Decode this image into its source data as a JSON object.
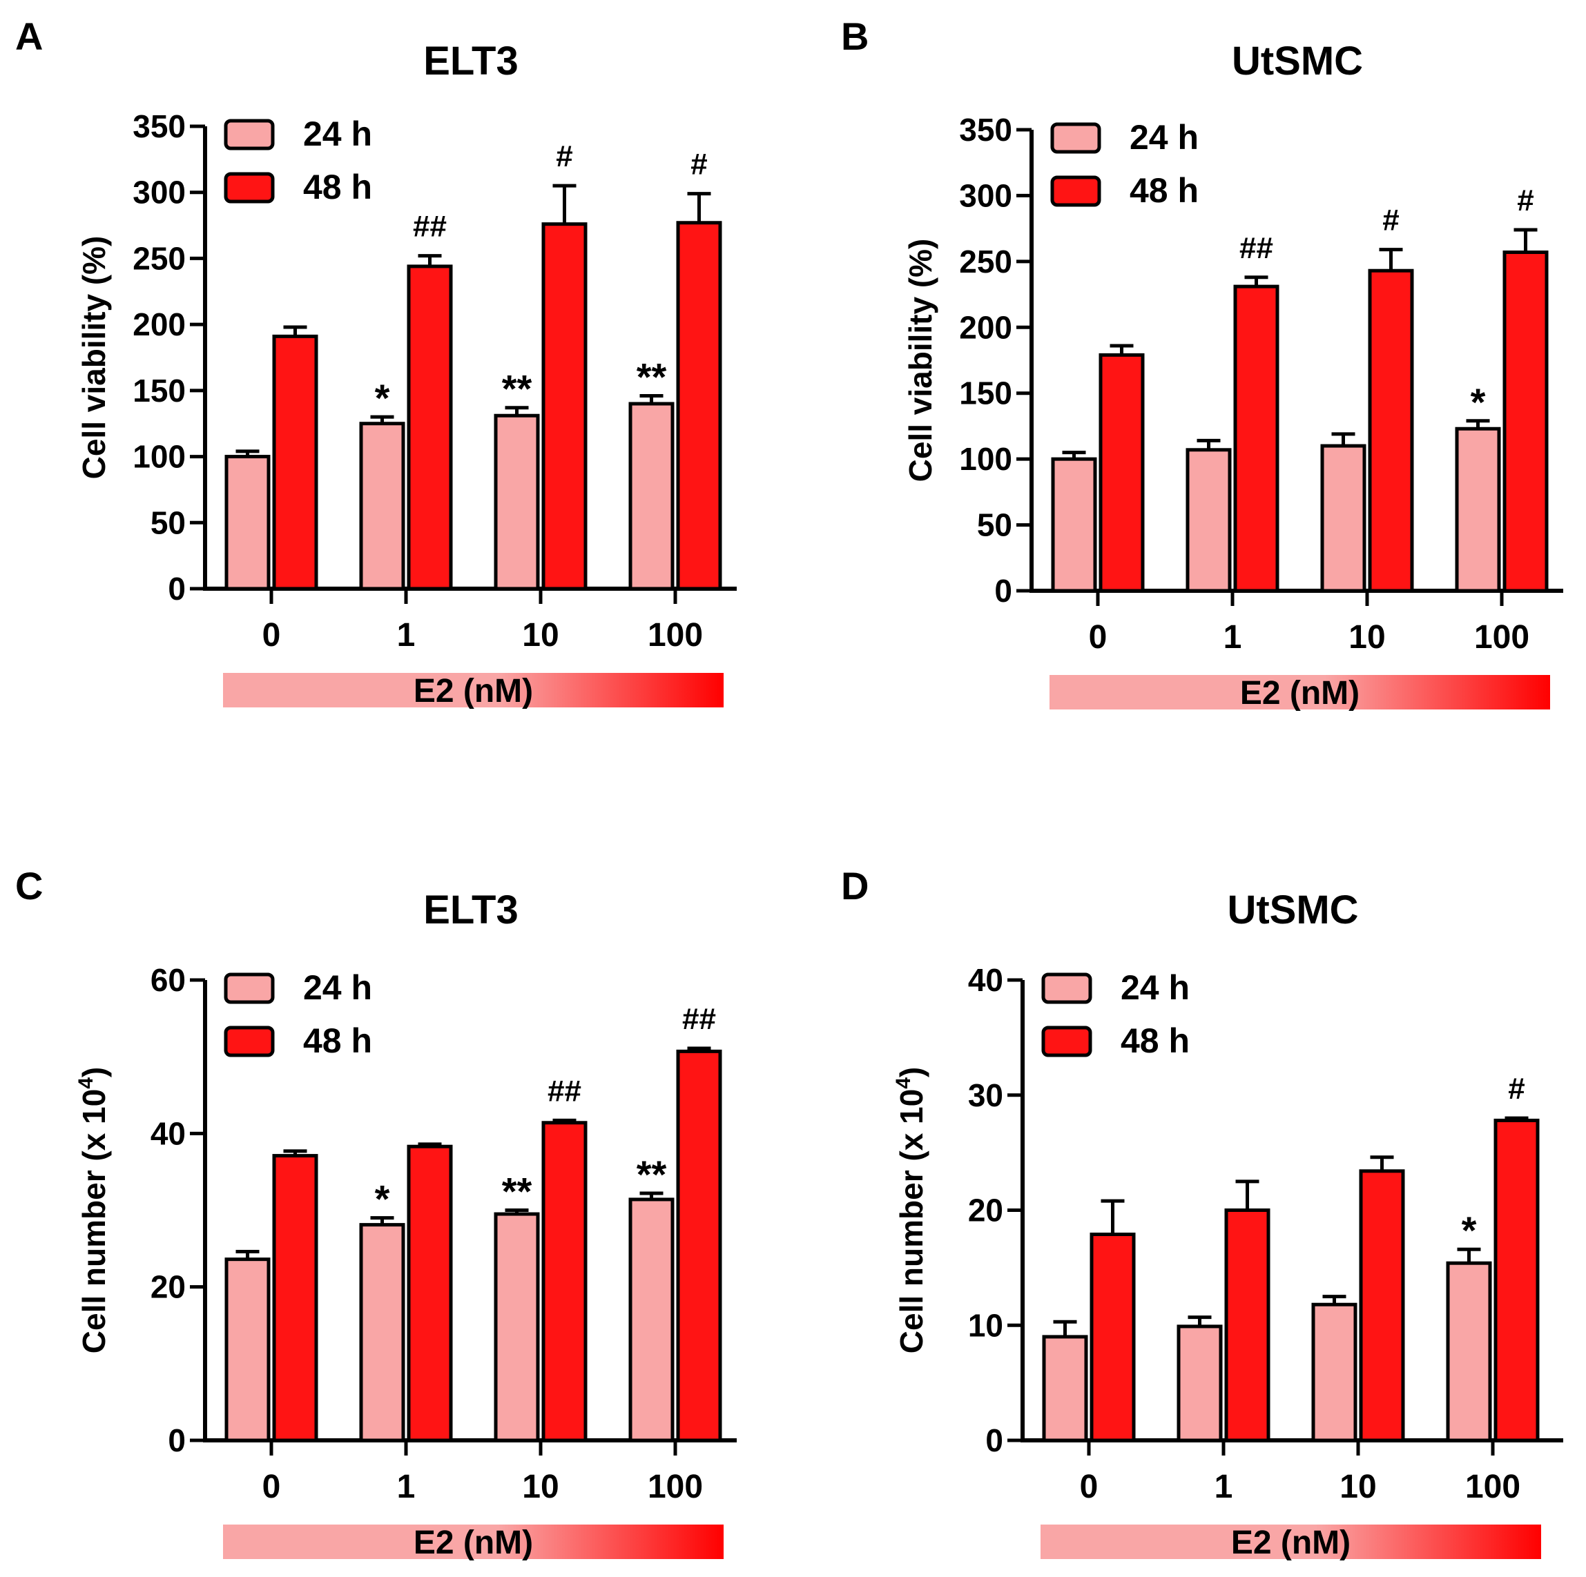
{
  "colors": {
    "light": "#f9a6a6",
    "dark": "#ff1414",
    "axis": "#000000",
    "gradient_start": "#f9a6a6",
    "gradient_end": "#ff0000"
  },
  "chart_data": [
    {
      "panel": "A",
      "type": "bar",
      "title": "ELT3",
      "ylabel": "Cell viability (%)",
      "xlabel": "E2 (nM)",
      "categories": [
        "0",
        "1",
        "10",
        "100"
      ],
      "ylim": [
        0,
        350
      ],
      "yticks": [
        "0",
        "50",
        "100",
        "150",
        "200",
        "250",
        "300",
        "350"
      ],
      "series": [
        {
          "name": "24 h",
          "values": [
            100,
            125,
            131,
            140
          ],
          "errors": [
            4,
            5,
            6,
            6
          ]
        },
        {
          "name": "48 h",
          "values": [
            191,
            244,
            276,
            277
          ],
          "errors": [
            7,
            8,
            29,
            22
          ]
        }
      ],
      "annotations": [
        {
          "category": 1,
          "series": 0,
          "text": "*"
        },
        {
          "category": 2,
          "series": 0,
          "text": "**"
        },
        {
          "category": 3,
          "series": 0,
          "text": "**"
        },
        {
          "category": 1,
          "series": 1,
          "text": "##"
        },
        {
          "category": 2,
          "series": 1,
          "text": "#"
        },
        {
          "category": 3,
          "series": 1,
          "text": "#"
        }
      ]
    },
    {
      "panel": "B",
      "type": "bar",
      "title": "UtSMC",
      "ylabel": "Cell viability (%)",
      "xlabel": "E2 (nM)",
      "categories": [
        "0",
        "1",
        "10",
        "100"
      ],
      "ylim": [
        0,
        350
      ],
      "yticks": [
        "0",
        "50",
        "100",
        "150",
        "200",
        "250",
        "300",
        "350"
      ],
      "series": [
        {
          "name": "24 h",
          "values": [
            100,
            107,
            110,
            123
          ],
          "errors": [
            5,
            7,
            9,
            6
          ]
        },
        {
          "name": "48 h",
          "values": [
            179,
            231,
            243,
            257
          ],
          "errors": [
            7,
            7,
            16,
            17
          ]
        }
      ],
      "annotations": [
        {
          "category": 3,
          "series": 0,
          "text": "*"
        },
        {
          "category": 1,
          "series": 1,
          "text": "##"
        },
        {
          "category": 2,
          "series": 1,
          "text": "#"
        },
        {
          "category": 3,
          "series": 1,
          "text": "#"
        }
      ]
    },
    {
      "panel": "C",
      "type": "bar",
      "title": "ELT3",
      "ylabel": "Cell number (x 10",
      "ylabel_superscript": "4",
      "ylabel_suffix": ")",
      "xlabel": "E2 (nM)",
      "categories": [
        "0",
        "1",
        "10",
        "100"
      ],
      "ylim": [
        0,
        60
      ],
      "yticks": [
        "0",
        "20",
        "40",
        "60"
      ],
      "series": [
        {
          "name": "24 h",
          "values": [
            23.6,
            28.1,
            29.5,
            31.4
          ],
          "errors": [
            1.0,
            0.9,
            0.5,
            0.8
          ]
        },
        {
          "name": "48 h",
          "values": [
            37.1,
            38.3,
            41.4,
            50.7
          ],
          "errors": [
            0.6,
            0.3,
            0.3,
            0.4
          ]
        }
      ],
      "annotations": [
        {
          "category": 1,
          "series": 0,
          "text": "*"
        },
        {
          "category": 2,
          "series": 0,
          "text": "**"
        },
        {
          "category": 3,
          "series": 0,
          "text": "**"
        },
        {
          "category": 2,
          "series": 1,
          "text": "##"
        },
        {
          "category": 3,
          "series": 1,
          "text": "##"
        }
      ]
    },
    {
      "panel": "D",
      "type": "bar",
      "title": "UtSMC",
      "ylabel": "Cell number (x 10",
      "ylabel_superscript": "4",
      "ylabel_suffix": ")",
      "xlabel": "E2 (nM)",
      "categories": [
        "0",
        "1",
        "10",
        "100"
      ],
      "ylim": [
        0,
        40
      ],
      "yticks": [
        "0",
        "10",
        "20",
        "30",
        "40"
      ],
      "series": [
        {
          "name": "24 h",
          "values": [
            9.0,
            9.9,
            11.8,
            15.4
          ],
          "errors": [
            1.3,
            0.8,
            0.7,
            1.2
          ]
        },
        {
          "name": "48 h",
          "values": [
            17.9,
            20.0,
            23.4,
            27.8
          ],
          "errors": [
            2.9,
            2.5,
            1.2,
            0.2
          ]
        }
      ],
      "annotations": [
        {
          "category": 3,
          "series": 0,
          "text": "*"
        },
        {
          "category": 3,
          "series": 1,
          "text": "#"
        }
      ]
    }
  ]
}
